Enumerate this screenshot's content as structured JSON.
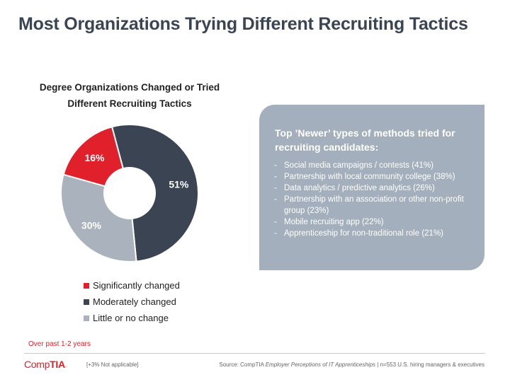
{
  "page": {
    "title": "Most Organizations Trying Different Recruiting Tactics"
  },
  "chart_data": {
    "type": "pie",
    "variant": "donut",
    "title_lines": [
      "Degree Organizations Changed or Tried",
      "Different Recruiting Tactics"
    ],
    "categories": [
      "Significantly changed",
      "Moderately changed",
      "Little or no change"
    ],
    "values": [
      16,
      51,
      30
    ],
    "labels": [
      "16%",
      "51%",
      "30%"
    ],
    "colors": [
      "#e0202a",
      "#3a4452",
      "#a9b2bd"
    ],
    "legend_position": "bottom"
  },
  "note": "Over past 1-2 years",
  "panel": {
    "title": "Top ’Newer’ types of methods tried for recruiting candidates:",
    "items": [
      "Social media campaigns / contests (41%)",
      "Partnership with local community college (38%)",
      "Data analytics / predictive analytics (26%)",
      "Partnership with an association or other non-profit group (23%)",
      "Mobile recruiting app (22%)",
      "Apprenticeship for non-traditional role (21%)"
    ]
  },
  "footer": {
    "logo_part1": "Comp",
    "logo_part2": "TIA",
    "logo_dot": ".",
    "not_applicable": "[+3% Not applicable]",
    "source_prefix": "Source: CompTIA ",
    "source_italic": "Employer Perceptions of IT Apprenticeships",
    "source_suffix": " | n=553 U.S. hiring managers & executives"
  }
}
